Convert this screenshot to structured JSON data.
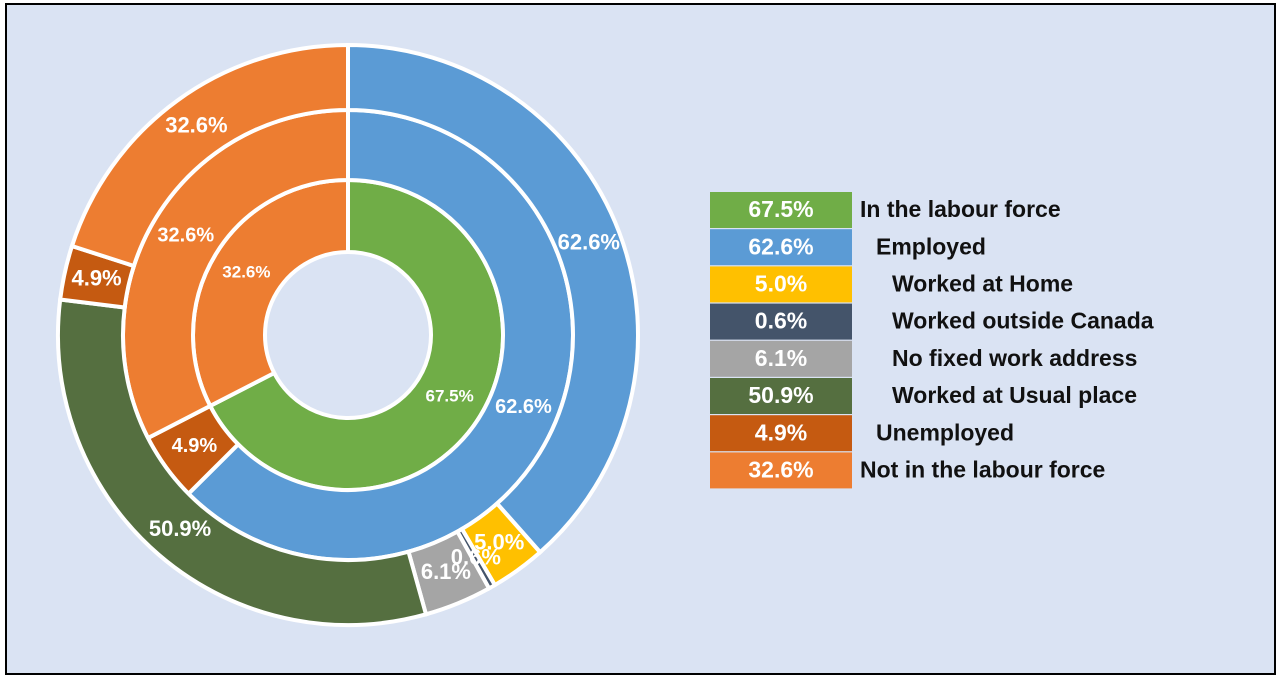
{
  "chart_data": {
    "type": "sunburst",
    "rings": [
      {
        "values": [
          67.5,
          32.6
        ],
        "value_labels": [
          "67.5%",
          "32.6%"
        ],
        "colors": [
          "#70ad47",
          "#ed7d31"
        ]
      },
      {
        "values": [
          62.6,
          4.9,
          32.6
        ],
        "value_labels": [
          "62.6%",
          "4.9%",
          "32.6%"
        ],
        "colors": [
          "#5b9bd5",
          "#c55a11",
          "#ed7d31"
        ]
      },
      {
        "values": [
          62.6,
          5.0,
          0.6,
          6.1,
          50.9,
          4.9,
          32.6
        ],
        "value_labels": [
          "62.6%",
          "5.0%",
          "0.6%",
          "6.1%",
          "50.9%",
          "4.9%",
          "32.6%"
        ],
        "colors": [
          "#5b9bd5",
          "#ffc000",
          "#44546a",
          "#a5a5a5",
          "#556f40",
          "#c55a11",
          "#ed7d31"
        ]
      }
    ],
    "legend": {
      "labels": [
        "In the labour force",
        "Employed",
        "Worked at Home",
        "Worked outside Canada",
        "No fixed work address",
        "Worked at Usual place",
        "Unemployed",
        "Not in the labour force"
      ],
      "values": [
        67.5,
        62.6,
        5.0,
        0.6,
        6.1,
        50.9,
        4.9,
        32.6
      ],
      "value_labels": [
        "67.5%",
        "62.6%",
        "5.0%",
        "0.6%",
        "6.1%",
        "50.9%",
        "4.9%",
        "32.6%"
      ],
      "colors": [
        "#70ad47",
        "#5b9bd5",
        "#ffc000",
        "#44546a",
        "#a5a5a5",
        "#556f40",
        "#c55a11",
        "#ed7d31"
      ]
    }
  }
}
